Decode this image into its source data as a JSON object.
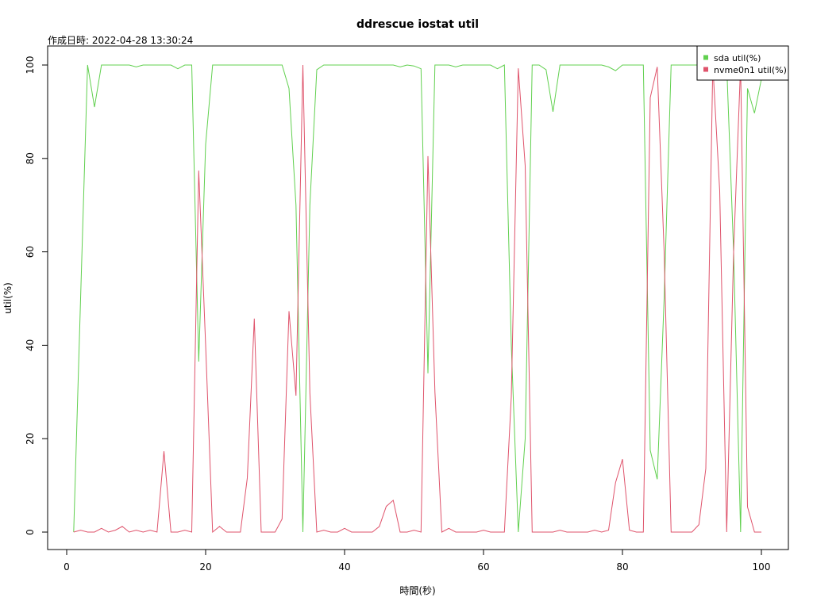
{
  "chart_data": {
    "type": "line",
    "title": "ddrescue iostat util",
    "subtitle": "作成日時: 2022-04-28 13:30:24",
    "xlabel": "時間(秒)",
    "ylabel": "util(%)",
    "xlim": [
      0,
      100
    ],
    "ylim": [
      0,
      100
    ],
    "xticks": [
      0,
      20,
      40,
      60,
      80,
      100
    ],
    "yticks": [
      0,
      20,
      40,
      60,
      80,
      100
    ],
    "grid": false,
    "legend_position": "top-right",
    "x": [
      1,
      2,
      3,
      4,
      5,
      6,
      7,
      8,
      9,
      10,
      11,
      12,
      13,
      14,
      15,
      16,
      17,
      18,
      19,
      20,
      21,
      22,
      23,
      24,
      25,
      26,
      27,
      28,
      29,
      30,
      31,
      32,
      33,
      34,
      35,
      36,
      37,
      38,
      39,
      40,
      41,
      42,
      43,
      44,
      45,
      46,
      47,
      48,
      49,
      50,
      51,
      52,
      53,
      54,
      55,
      56,
      57,
      58,
      59,
      60,
      61,
      62,
      63,
      64,
      65,
      66,
      67,
      68,
      69,
      70,
      71,
      72,
      73,
      74,
      75,
      76,
      77,
      78,
      79,
      80,
      81,
      82,
      83,
      84,
      85,
      86,
      87,
      88,
      89,
      90,
      91,
      92,
      93,
      94,
      95,
      96,
      97,
      98,
      99,
      100
    ],
    "series": [
      {
        "name": "sda util(%)",
        "color": "#61d04f",
        "values": [
          0,
          50,
          100,
          91,
          100,
          100,
          100,
          100,
          100,
          99.6,
          100,
          100,
          100,
          100,
          100,
          99.2,
          100,
          100,
          36.5,
          83,
          100,
          100,
          100,
          100,
          100,
          100,
          100,
          100,
          100,
          100,
          100,
          95,
          70,
          0,
          70,
          99,
          100,
          100,
          100,
          100,
          100,
          100,
          100,
          100,
          100,
          100,
          100,
          99.6,
          100,
          99.8,
          99.2,
          34,
          100,
          100,
          100,
          99.6,
          100,
          100,
          100,
          100,
          100,
          99.2,
          100,
          40,
          0,
          20,
          100,
          100,
          99,
          90,
          100,
          100,
          100,
          100,
          100,
          100,
          100,
          99.6,
          98.8,
          100,
          100,
          100,
          100,
          17.5,
          11.3,
          50,
          100,
          100,
          100,
          100,
          100,
          100,
          100,
          100,
          100,
          60,
          0,
          95,
          89.7,
          97
        ]
      },
      {
        "name": "nvme0n1 util(%)",
        "color": "#df536b",
        "values": [
          0,
          0.4,
          0,
          0,
          0.8,
          0,
          0.4,
          1.2,
          0,
          0.4,
          0,
          0.4,
          0,
          17.3,
          0,
          0,
          0.4,
          0,
          77.4,
          40,
          0,
          1.2,
          0,
          0,
          0,
          11.6,
          45.7,
          0,
          0,
          0,
          2.8,
          47.3,
          29.2,
          100,
          29.8,
          0,
          0.4,
          0,
          0,
          0.8,
          0,
          0,
          0,
          0,
          1.2,
          5.5,
          6.8,
          0,
          0,
          0.4,
          0,
          80.5,
          30,
          0,
          0.8,
          0,
          0,
          0,
          0,
          0.4,
          0,
          0,
          0,
          29,
          99.3,
          78.4,
          0,
          0,
          0,
          0,
          0.4,
          0,
          0,
          0,
          0,
          0.4,
          0,
          0.4,
          10.6,
          15.6,
          0.4,
          0,
          0,
          93,
          99.6,
          60,
          0,
          0,
          0,
          0,
          1.6,
          13.6,
          100,
          73,
          0,
          60,
          100,
          5.4,
          0,
          0
        ]
      }
    ]
  }
}
